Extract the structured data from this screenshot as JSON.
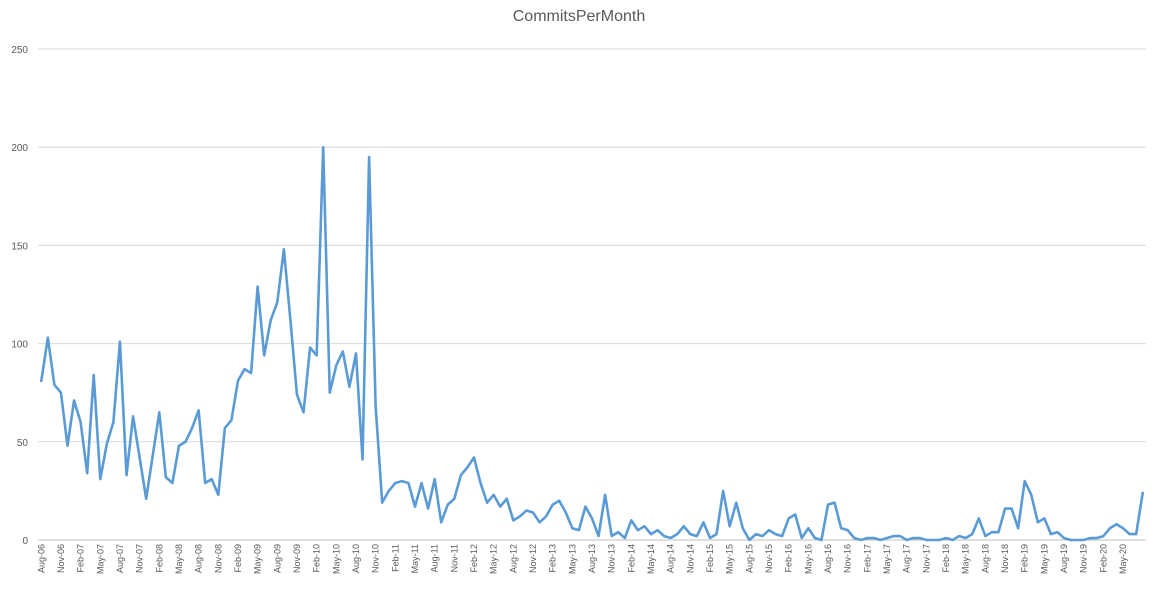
{
  "chart_data": {
    "type": "line",
    "title": "CommitsPerMonth",
    "xlabel": "",
    "ylabel": "",
    "ylim": [
      0,
      250
    ],
    "yticks": [
      0,
      50,
      100,
      150,
      200,
      250
    ],
    "grid": true,
    "legend": "none",
    "color": "#5b9bd5",
    "x_labels": [
      "Aug-06",
      "Nov-06",
      "Feb-07",
      "May-07",
      "Aug-07",
      "Nov-07",
      "Feb-08",
      "May-08",
      "Aug-08",
      "Nov-08",
      "Feb-09",
      "May-09",
      "Aug-09",
      "Nov-09",
      "Feb-10",
      "May-10",
      "Aug-10",
      "Nov-10",
      "Feb-11",
      "May-11",
      "Aug-11",
      "Nov-11",
      "Feb-12",
      "May-12",
      "Aug-12",
      "Nov-12",
      "Feb-13",
      "May-13",
      "Aug-13",
      "Nov-13",
      "Feb-14",
      "May-14",
      "Aug-14",
      "Nov-14",
      "Feb-15",
      "May-15",
      "Aug-15",
      "Nov-15",
      "Feb-16",
      "May-16",
      "Aug-16",
      "Nov-16",
      "Feb-17",
      "May-17",
      "Aug-17",
      "Nov-17",
      "Feb-18",
      "May-18",
      "Aug-18",
      "Nov-18",
      "Feb-19",
      "May-19",
      "Aug-19",
      "Nov-19",
      "Feb-20",
      "May-20"
    ],
    "series": [
      {
        "values": [
          81,
          103,
          79,
          75,
          48,
          71,
          60,
          34,
          84,
          31,
          49,
          60,
          101,
          33,
          63,
          42,
          21,
          43,
          65,
          32,
          29,
          48,
          50,
          57,
          66,
          29,
          31,
          23,
          57,
          61,
          81,
          87,
          85,
          129,
          94,
          112,
          121,
          148,
          112,
          74,
          65,
          98,
          94,
          200,
          75,
          89,
          96,
          78,
          95,
          41,
          195,
          68,
          19,
          25,
          29,
          30,
          29,
          17,
          29,
          16,
          31,
          9,
          18,
          21,
          33,
          37,
          42,
          29,
          19,
          23,
          17,
          21,
          10,
          12,
          15,
          14,
          9,
          12,
          18,
          20,
          14,
          6,
          5,
          17,
          11,
          2,
          23,
          2,
          4,
          1,
          10,
          5,
          7,
          3,
          5,
          2,
          1,
          3,
          7,
          3,
          2,
          9,
          1,
          3,
          25,
          7,
          19,
          6,
          0,
          3,
          2,
          5,
          3,
          2,
          11,
          13,
          1,
          6,
          1,
          0,
          18,
          19,
          6,
          5,
          1,
          0,
          1,
          1,
          0,
          1,
          2,
          2,
          0,
          1,
          1,
          0,
          0,
          0,
          1,
          0,
          2,
          1,
          3,
          11,
          2,
          4,
          4,
          16,
          16,
          6,
          30,
          23,
          9,
          11,
          3,
          4,
          1,
          0,
          0,
          0,
          1,
          1,
          2,
          6,
          8,
          6,
          3,
          3,
          24
        ]
      }
    ]
  }
}
